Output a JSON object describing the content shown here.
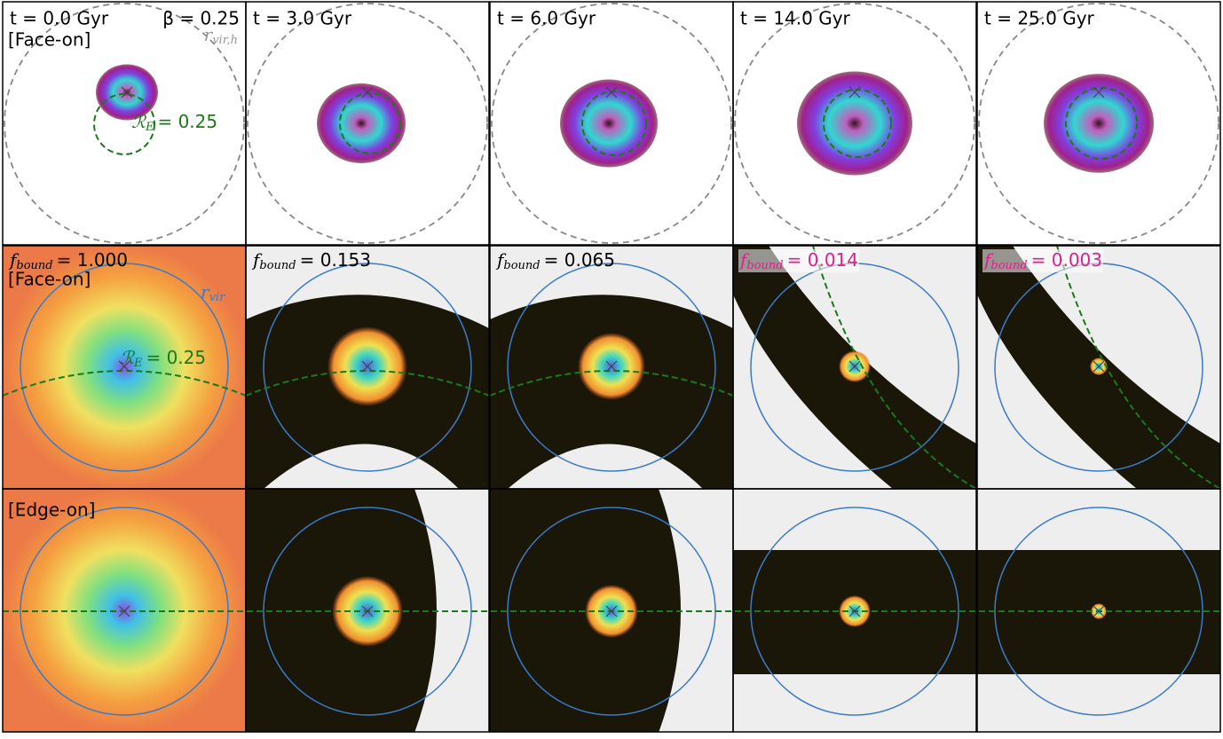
{
  "columns": [
    {
      "time": "t = 0.0 Gyr",
      "f_bound_value": "= 1.000"
    },
    {
      "time": "t = 3.0 Gyr",
      "f_bound_value": "= 0.153"
    },
    {
      "time": "t = 6.0 Gyr",
      "f_bound_value": "= 0.065"
    },
    {
      "time": "t = 14.0 Gyr",
      "f_bound_value": "= 0.014"
    },
    {
      "time": "t = 25.0 Gyr",
      "f_bound_value": "= 0.003"
    }
  ],
  "f_bound": {
    "symbol": "f",
    "subscript": "bound"
  },
  "beta": "β = 0.25",
  "face_on": "[Face-on]",
  "edge_on": "[Edge-on]",
  "r_vir_h": {
    "symbol": "r",
    "subscript": "vir,h"
  },
  "r_vir": {
    "symbol": "r",
    "subscript": "vir"
  },
  "R_E": {
    "symbol": "ℛ",
    "subscript": "E",
    "value": "= 0.25"
  }
}
